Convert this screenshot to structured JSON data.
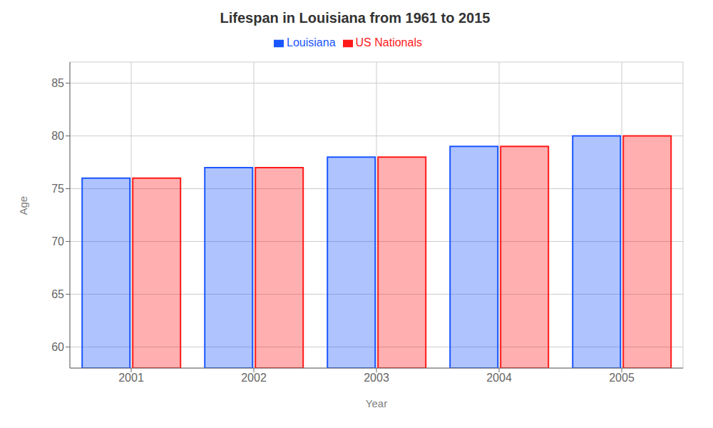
{
  "chart_data": {
    "type": "bar",
    "title": "Lifespan in Louisiana from 1961 to 2015",
    "x_label": "Year",
    "y_label": "Age",
    "categories": [
      "2001",
      "2002",
      "2003",
      "2004",
      "2005"
    ],
    "series": [
      {
        "name": "Louisiana",
        "color": "#1a56ff",
        "values": [
          76,
          77,
          78,
          79,
          80
        ]
      },
      {
        "name": "US Nationals",
        "color": "#ff1a1a",
        "values": [
          76,
          77,
          78,
          79,
          80
        ]
      }
    ],
    "ylim": [
      58,
      87
    ],
    "yticks": [
      60,
      65,
      70,
      75,
      80,
      85
    ],
    "grid": true,
    "legend": "upper center"
  }
}
